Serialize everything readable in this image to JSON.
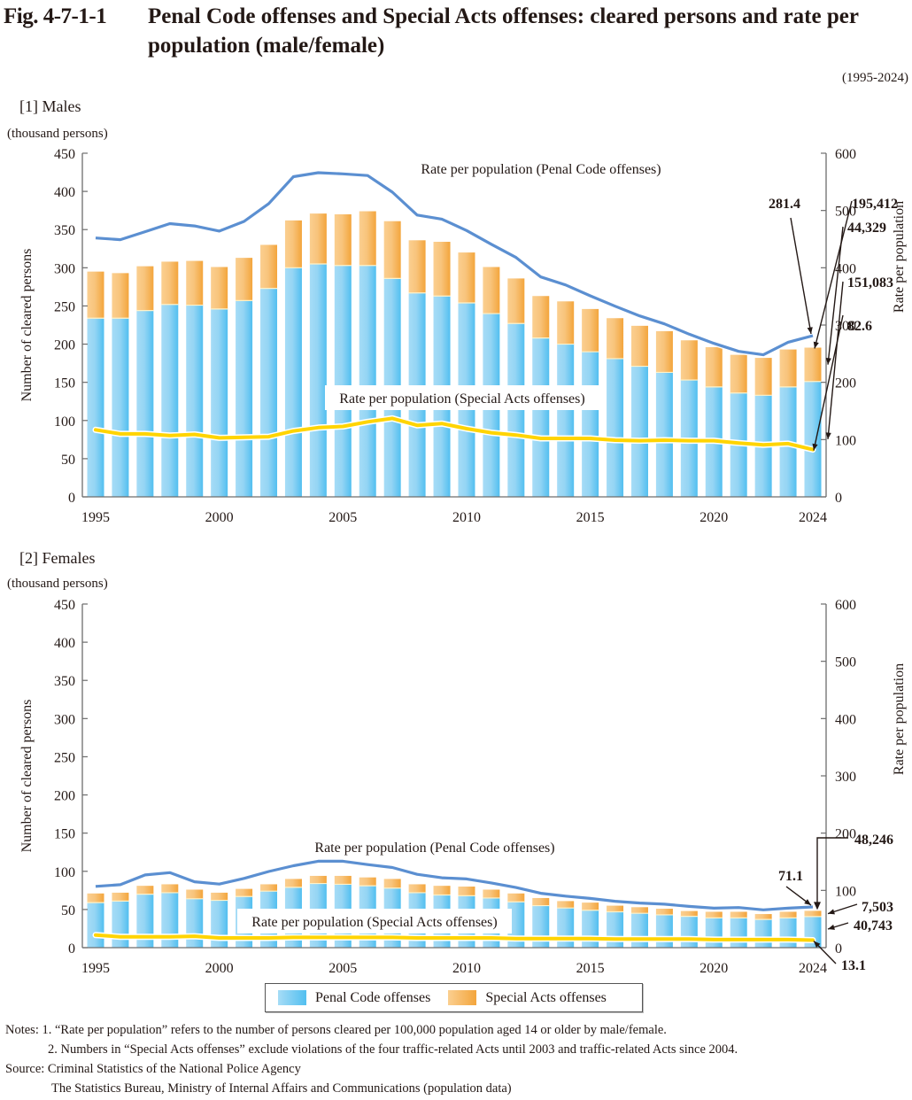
{
  "figure": {
    "number": "Fig. 4-7-1-1",
    "title": "Penal Code offenses and Special Acts offenses: cleared persons and rate per population (male/female)",
    "period": "(1995-2024)"
  },
  "legend": {
    "penal": "Penal Code offenses",
    "special": "Special Acts offenses"
  },
  "notes": {
    "note1": "Notes: 1. “Rate per population” refers to the number of persons cleared per 100,000 population aged 14 or older by male/female.",
    "note2": "2. Numbers in “Special Acts offenses” exclude violations of the four traffic-related Acts until 2003 and traffic-related Acts since 2004.",
    "source1": "Source: Criminal Statistics of the National Police Agency",
    "source2": "The Statistics Bureau, Ministry of Internal Affairs and Communications (population data)"
  },
  "colors": {
    "penal_bar_light": "#a6dcf6",
    "penal_bar_dark": "#52bff0",
    "special_bar_light": "#fbcf90",
    "special_bar_dark": "#f3a53c",
    "penal_rate_line": "#5b8fd1",
    "special_rate_line": "#ffd400",
    "penal_label": "#5b8fd1",
    "special_label": "#f0c000",
    "total_label": "#231815",
    "special_value_label": "#f3a53c",
    "penal_value_label": "#3fb6e8"
  },
  "chart_data": [
    {
      "type": "bar",
      "id": "males",
      "panel_label": "[1] Males",
      "unit_label": "(thousand persons)",
      "ylabel": "Number of cleared persons",
      "y2label": "Rate per population",
      "ylim": [
        0,
        450
      ],
      "yticks": [
        0,
        50,
        100,
        150,
        200,
        250,
        300,
        350,
        400,
        450
      ],
      "y2lim": [
        0,
        600
      ],
      "y2ticks": [
        0,
        100,
        200,
        300,
        400,
        500,
        600
      ],
      "xtick_labels": [
        "1995",
        "2000",
        "2005",
        "2010",
        "2015",
        "2020",
        "2024"
      ],
      "stacked": true,
      "categories": [
        1995,
        1996,
        1997,
        1998,
        1999,
        2000,
        2001,
        2002,
        2003,
        2004,
        2005,
        2006,
        2007,
        2008,
        2009,
        2010,
        2011,
        2012,
        2013,
        2014,
        2015,
        2016,
        2017,
        2018,
        2019,
        2020,
        2021,
        2022,
        2023,
        2024
      ],
      "series": [
        {
          "name": "Penal Code offenses",
          "axis": "left",
          "kind": "bar",
          "values": [
            234,
            234,
            244,
            252,
            251,
            246,
            257,
            273,
            300,
            305,
            303,
            303,
            286,
            267,
            263,
            254,
            240,
            227,
            208,
            200,
            190,
            181,
            171,
            163,
            153,
            144,
            136,
            133,
            144,
            151.083
          ]
        },
        {
          "name": "Special Acts offenses",
          "axis": "left",
          "kind": "bar",
          "values": [
            61,
            59,
            58,
            56,
            58,
            55,
            56,
            57,
            62,
            66,
            67,
            71,
            75,
            69,
            71,
            66,
            61,
            59,
            55,
            56,
            56,
            53,
            53,
            54,
            52,
            52,
            50,
            49,
            49,
            44.329
          ]
        },
        {
          "name": "Rate per population (Penal Code offenses)",
          "axis": "right",
          "kind": "line",
          "values": [
            452,
            449,
            463,
            477,
            473,
            464,
            481,
            512,
            559,
            566,
            564,
            561,
            532,
            492,
            485,
            465,
            441,
            418,
            384,
            370,
            351,
            333,
            316,
            302,
            284,
            268,
            254,
            248,
            270,
            281.4
          ]
        },
        {
          "name": "Rate per population (Special Acts offenses)",
          "axis": "right",
          "kind": "line",
          "values": [
            117,
            110,
            110,
            107,
            109,
            103,
            104,
            105,
            115,
            121,
            123,
            131,
            137,
            125,
            128,
            119,
            112,
            108,
            102,
            102,
            102,
            99,
            98,
            99,
            98,
            98,
            94,
            91,
            93,
            82.6
          ]
        }
      ],
      "line_labels": {
        "penal": "Rate per population (Penal Code offenses)",
        "special": "Rate per population (Special Acts offenses)"
      },
      "annotations": {
        "penal_rate_last": "281.4",
        "total_last": "195,412",
        "special_last": "44,329",
        "penal_last": "151,083",
        "special_rate_last": "82.6"
      }
    },
    {
      "type": "bar",
      "id": "females",
      "panel_label": "[2] Females",
      "unit_label": "(thousand persons)",
      "ylabel": "Number of cleared persons",
      "y2label": "Rate per population",
      "ylim": [
        0,
        450
      ],
      "yticks": [
        0,
        50,
        100,
        150,
        200,
        250,
        300,
        350,
        400,
        450
      ],
      "y2lim": [
        0,
        600
      ],
      "y2ticks": [
        0,
        100,
        200,
        300,
        400,
        500,
        600
      ],
      "xtick_labels": [
        "1995",
        "2000",
        "2005",
        "2010",
        "2015",
        "2020",
        "2024"
      ],
      "stacked": true,
      "categories": [
        1995,
        1996,
        1997,
        1998,
        1999,
        2000,
        2001,
        2002,
        2003,
        2004,
        2005,
        2006,
        2007,
        2008,
        2009,
        2010,
        2011,
        2012,
        2013,
        2014,
        2015,
        2016,
        2017,
        2018,
        2019,
        2020,
        2021,
        2022,
        2023,
        2024
      ],
      "series": [
        {
          "name": "Penal Code offenses",
          "axis": "left",
          "kind": "bar",
          "values": [
            59,
            61,
            70,
            72,
            64,
            62,
            67,
            74,
            79,
            84,
            83,
            81,
            78,
            72,
            69,
            68,
            65,
            60,
            55,
            52,
            49,
            47,
            45,
            43,
            41,
            39,
            39,
            37,
            39,
            40.743
          ]
        },
        {
          "name": "Special Acts offenses",
          "axis": "left",
          "kind": "bar",
          "values": [
            12,
            11,
            11,
            11,
            12,
            10,
            10,
            9,
            11,
            10,
            11,
            11,
            12,
            11,
            12,
            12,
            11,
            11,
            10,
            9,
            10,
            8,
            8,
            8,
            7,
            8,
            8,
            7,
            8,
            7.503
          ]
        },
        {
          "name": "Rate per population (Penal Code offenses)",
          "axis": "right",
          "kind": "line",
          "values": [
            107,
            110,
            127,
            131,
            115,
            111,
            121,
            133,
            143,
            151,
            151,
            145,
            140,
            128,
            122,
            120,
            113,
            105,
            95,
            90,
            86,
            81,
            78,
            76,
            72,
            69,
            70,
            66,
            69,
            71.1
          ]
        },
        {
          "name": "Rate per population (Special Acts offenses)",
          "axis": "right",
          "kind": "line",
          "values": [
            22,
            19,
            19,
            19,
            20,
            17,
            17,
            17,
            18,
            18,
            18,
            18,
            18,
            17,
            17,
            17,
            17,
            16,
            16,
            16,
            16,
            15,
            15,
            15,
            15,
            14,
            14,
            14,
            14,
            13.1
          ]
        }
      ],
      "line_labels": {
        "penal": "Rate per population (Penal Code offenses)",
        "special": "Rate per population (Special Acts offenses)"
      },
      "annotations": {
        "penal_rate_last": "71.1",
        "total_last": "48,246",
        "special_last": "7,503",
        "penal_last": "40,743",
        "special_rate_last": "13.1"
      }
    }
  ]
}
